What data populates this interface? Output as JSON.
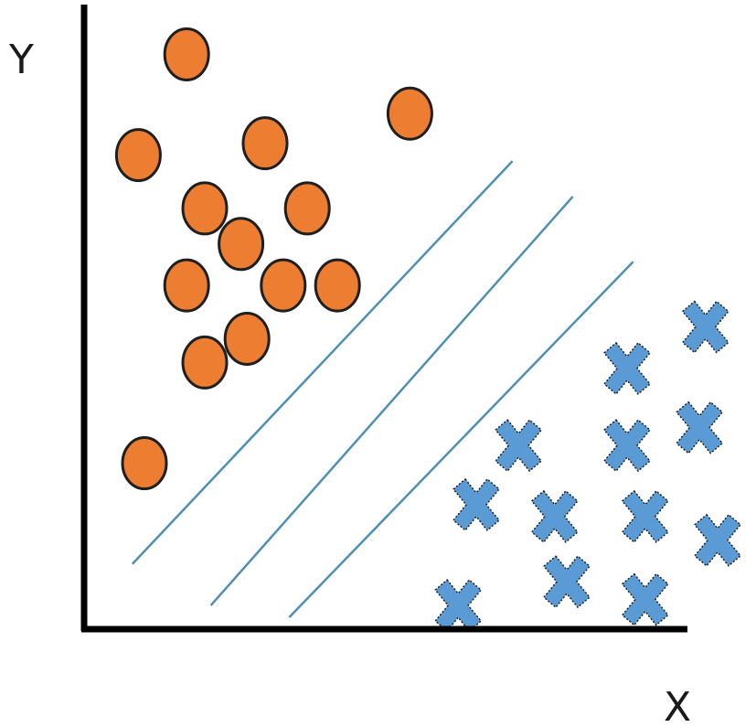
{
  "axes": {
    "x_label": "X",
    "y_label": "Y"
  },
  "colors": {
    "circle_fill": "#ED7D31",
    "circle_stroke": "#1f1f1f",
    "cross_fill": "#5B9BD5",
    "cross_stroke": "#1f1f1f",
    "line": "#4F8FB2",
    "axis": "#000000"
  },
  "chart_data": {
    "type": "scatter",
    "xlim": [
      0,
      100
    ],
    "ylim": [
      0,
      100
    ],
    "series": [
      {
        "marker": "circle",
        "points": [
          [
            17,
            97
          ],
          [
            54,
            87
          ],
          [
            9,
            80
          ],
          [
            30,
            82
          ],
          [
            20,
            71
          ],
          [
            37,
            71
          ],
          [
            26,
            65
          ],
          [
            17,
            58
          ],
          [
            33,
            58
          ],
          [
            42,
            58
          ],
          [
            27,
            49
          ],
          [
            20,
            45
          ],
          [
            10,
            28
          ]
        ]
      },
      {
        "marker": "cross",
        "points": [
          [
            103,
            51
          ],
          [
            90,
            44
          ],
          [
            102,
            34
          ],
          [
            72,
            31
          ],
          [
            90,
            31
          ],
          [
            65,
            21
          ],
          [
            78,
            19
          ],
          [
            93,
            19
          ],
          [
            105,
            15
          ],
          [
            80,
            8
          ],
          [
            93,
            5
          ],
          [
            62,
            4
          ]
        ]
      }
    ],
    "separator_lines": [
      {
        "from": [
          8,
          11
        ],
        "to": [
          71,
          79
        ]
      },
      {
        "from": [
          21,
          4
        ],
        "to": [
          81,
          73
        ]
      },
      {
        "from": [
          34,
          2
        ],
        "to": [
          91,
          62
        ]
      }
    ]
  }
}
